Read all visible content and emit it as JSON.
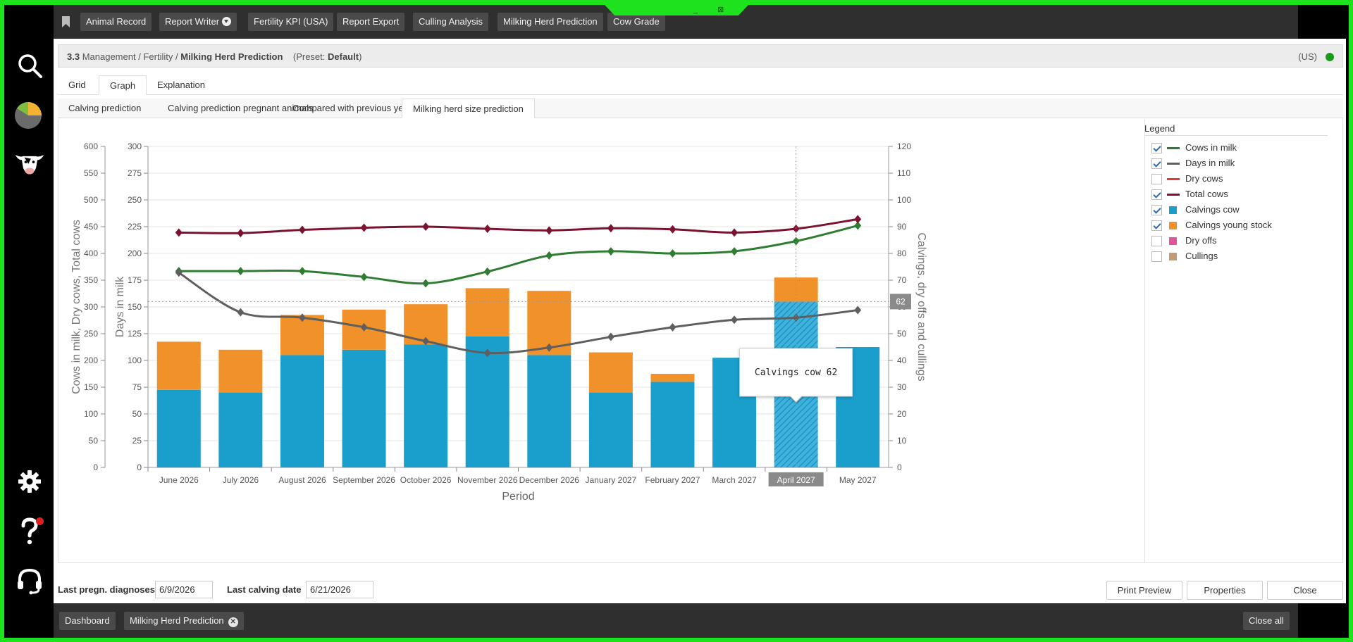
{
  "topbar": {
    "buttons": [
      "Animal Record",
      "Report Writer",
      "Fertility KPI (USA)",
      "Report Export",
      "Culling Analysis",
      "Milking Herd Prediction",
      "Cow Grade"
    ],
    "window_controls": [
      "_",
      "⊠"
    ]
  },
  "header": {
    "number": "3.3",
    "crumb1": "Management",
    "sep": "/",
    "crumb2": "Fertility",
    "crumb3": "Milking Herd Prediction",
    "preset_label": "(Preset: ",
    "preset_value": "Default",
    "preset_close": ")",
    "unit": "(US)"
  },
  "tabs": [
    "Grid",
    "Graph",
    "Explanation"
  ],
  "subtabs": [
    "Calving prediction",
    "Calving prediction pregnant animals",
    "Compared with previous year",
    "Milking herd size prediction"
  ],
  "legend": {
    "title": "Legend",
    "items": [
      {
        "label": "Cows in milk",
        "checked": true,
        "color": "#2e7d32",
        "kind": "line"
      },
      {
        "label": "Days in milk",
        "checked": true,
        "color": "#5f5f5f",
        "kind": "line"
      },
      {
        "label": "Dry cows",
        "checked": false,
        "color": "#e53935",
        "kind": "line"
      },
      {
        "label": "Total cows",
        "checked": true,
        "color": "#7b1330",
        "kind": "line"
      },
      {
        "label": "Calvings cow",
        "checked": true,
        "color": "#1a9ecc",
        "kind": "box"
      },
      {
        "label": "Calvings young stock",
        "checked": true,
        "color": "#f0912a",
        "kind": "box"
      },
      {
        "label": "Dry offs",
        "checked": false,
        "color": "#e0559a",
        "kind": "box"
      },
      {
        "label": "Cullings",
        "checked": false,
        "color": "#c49a72",
        "kind": "box"
      }
    ]
  },
  "chart_data": {
    "type": "bar",
    "categories": [
      "June 2026",
      "July 2026",
      "August 2026",
      "September 2026",
      "October 2026",
      "November 2026",
      "December 2026",
      "January 2027",
      "February 2027",
      "March 2027",
      "April 2027",
      "May 2027"
    ],
    "xlabel": "Period",
    "ylabel_left_outer": "Cows in milk, Dry cows, Total cows",
    "ylabel_left_inner": "Days in milk",
    "ylabel_right": "Calvings, dry offs and cullings",
    "y_outer_ticks": [
      "0",
      "50",
      "100",
      "150",
      "200",
      "250",
      "300",
      "350",
      "400",
      "450",
      "500",
      "550",
      "600"
    ],
    "y_inner_ticks": [
      "0",
      "25",
      "50",
      "75",
      "100",
      "125",
      "150",
      "175",
      "200",
      "225",
      "250",
      "275",
      "300"
    ],
    "y_right_ticks": [
      "0",
      "10",
      "20",
      "30",
      "40",
      "50",
      "60",
      "70",
      "80",
      "90",
      "100",
      "110",
      "120"
    ],
    "ylim_outer": [
      0,
      600
    ],
    "ylim_inner": [
      0,
      300
    ],
    "ylim_right": [
      0,
      120
    ],
    "series": [
      {
        "name": "Calvings cow",
        "axis": "right",
        "kind": "bar",
        "color": "#1a9ecc",
        "values": [
          29,
          28,
          42,
          44,
          46,
          49,
          42,
          28,
          32,
          41,
          62,
          45
        ]
      },
      {
        "name": "Calvings young stock",
        "axis": "right",
        "kind": "bar",
        "color": "#f0912a",
        "values": [
          18,
          16,
          15,
          15,
          15,
          18,
          24,
          15,
          3,
          0,
          9,
          0
        ]
      },
      {
        "name": "Cows in milk",
        "axis": "outer",
        "kind": "line",
        "color": "#2e7d32",
        "values": [
          367,
          367,
          367,
          356,
          344,
          366,
          396,
          404,
          400,
          404,
          423,
          452
        ]
      },
      {
        "name": "Days in milk",
        "axis": "inner",
        "kind": "line",
        "color": "#5f5f5f",
        "values": [
          182,
          145,
          140,
          131,
          118,
          107,
          112,
          122,
          131,
          138,
          140,
          147
        ]
      },
      {
        "name": "Total cows",
        "axis": "outer",
        "kind": "line",
        "color": "#7b1330",
        "values": [
          439,
          438,
          444,
          448,
          450,
          446,
          443,
          447,
          445,
          439,
          446,
          464
        ]
      }
    ],
    "highlight_category": "April 2027",
    "crosshair_label": "62",
    "tooltip": "Calvings cow 62",
    "grid": true,
    "legend_position": "right"
  },
  "footer": {
    "last_pregn_label": "Last pregn. diagnoses",
    "last_pregn_value": "6/9/2026",
    "last_calving_label": "Last calving date",
    "last_calving_value": "6/21/2026",
    "print_preview": "Print Preview",
    "properties": "Properties",
    "close": "Close"
  },
  "bottombar": {
    "dashboard": "Dashboard",
    "milking_tab": "Milking Herd Prediction",
    "close_all": "Close all"
  },
  "colors": {
    "accent": "#1ee21e",
    "bar_dark": "#2f2f2f"
  }
}
